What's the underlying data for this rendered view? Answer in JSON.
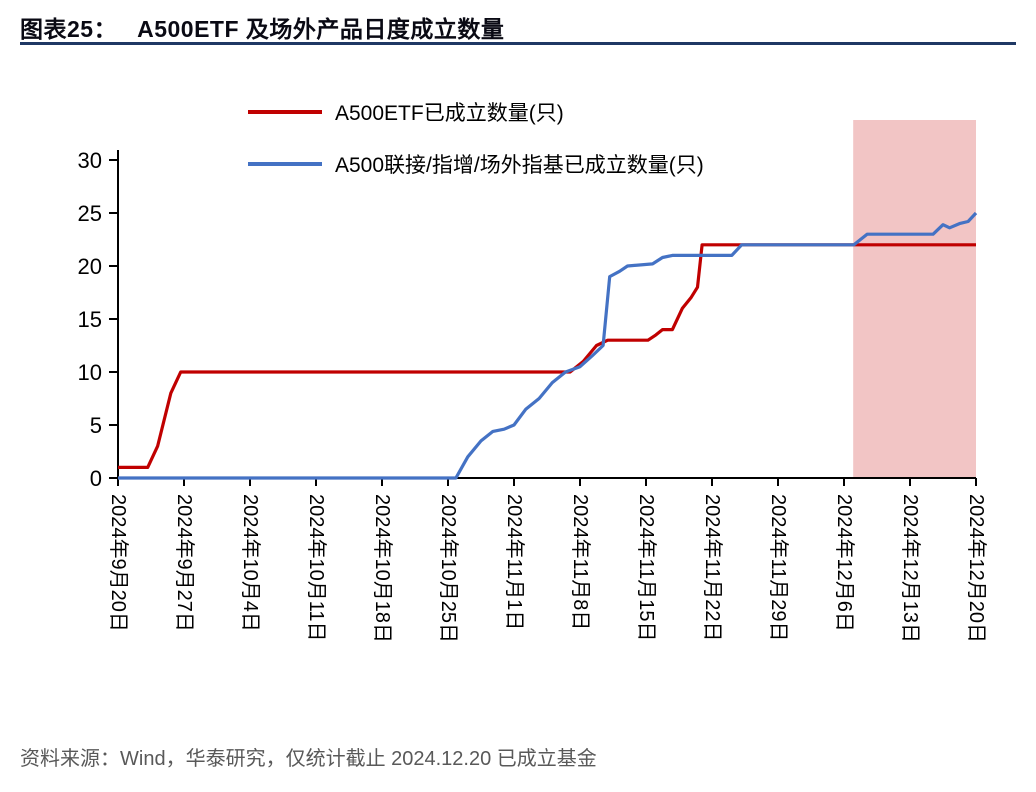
{
  "header": {
    "figure_label": "图表25：",
    "figure_title": "A500ETF 及场外产品日度成立数量"
  },
  "footer": {
    "source_note": "资料来源：Wind，华泰研究，仅统计截止 2024.12.20 已成立基金"
  },
  "chart_data": {
    "type": "line",
    "title": "A500ETF 及场外产品日度成立数量",
    "xlabel": "",
    "ylabel": "",
    "grid": false,
    "legend_position": "top-left",
    "ylim": [
      0,
      30
    ],
    "yticks": [
      0,
      5,
      10,
      15,
      20,
      25,
      30
    ],
    "x_tick_labels": [
      "2024年9月20日",
      "2024年9月27日",
      "2024年10月4日",
      "2024年10月11日",
      "2024年10月18日",
      "2024年10月25日",
      "2024年11月1日",
      "2024年11月8日",
      "2024年11月15日",
      "2024年11月22日",
      "2024年11月29日",
      "2024年12月6日",
      "2024年12月13日",
      "2024年12月20日"
    ],
    "series": [
      {
        "name": "A500ETF已成立数量(只)",
        "color": "#C00000",
        "points": [
          [
            0,
            1
          ],
          [
            0.45,
            1
          ],
          [
            0.6,
            3
          ],
          [
            0.8,
            8
          ],
          [
            0.95,
            10
          ],
          [
            6.85,
            10
          ],
          [
            7.05,
            11
          ],
          [
            7.25,
            12.5
          ],
          [
            7.42,
            13
          ],
          [
            8.03,
            13
          ],
          [
            8.15,
            13.5
          ],
          [
            8.25,
            14
          ],
          [
            8.4,
            14
          ],
          [
            8.55,
            16
          ],
          [
            8.68,
            17
          ],
          [
            8.78,
            18
          ],
          [
            8.85,
            22
          ],
          [
            13,
            22
          ]
        ]
      },
      {
        "name": "A500联接/指增/场外指基已成立数量(只)",
        "color": "#4472C4",
        "points": [
          [
            0,
            0
          ],
          [
            5.12,
            0
          ],
          [
            5.3,
            2
          ],
          [
            5.5,
            3.5
          ],
          [
            5.68,
            4.4
          ],
          [
            5.85,
            4.6
          ],
          [
            6.0,
            5
          ],
          [
            6.18,
            6.5
          ],
          [
            6.38,
            7.5
          ],
          [
            6.58,
            9
          ],
          [
            6.78,
            10
          ],
          [
            7.0,
            10.5
          ],
          [
            7.18,
            11.5
          ],
          [
            7.35,
            12.5
          ],
          [
            7.45,
            19
          ],
          [
            7.6,
            19.5
          ],
          [
            7.72,
            20
          ],
          [
            8.1,
            20.2
          ],
          [
            8.25,
            20.8
          ],
          [
            8.4,
            21
          ],
          [
            9.3,
            21
          ],
          [
            9.45,
            22
          ],
          [
            11.15,
            22
          ],
          [
            11.35,
            23
          ],
          [
            12.35,
            23
          ],
          [
            12.5,
            23.9
          ],
          [
            12.6,
            23.6
          ],
          [
            12.75,
            24
          ],
          [
            12.88,
            24.2
          ],
          [
            13,
            25
          ]
        ]
      }
    ],
    "highlight_region": {
      "x_start": 11.14,
      "x_end": 13,
      "color": "#F2C5C5"
    }
  }
}
